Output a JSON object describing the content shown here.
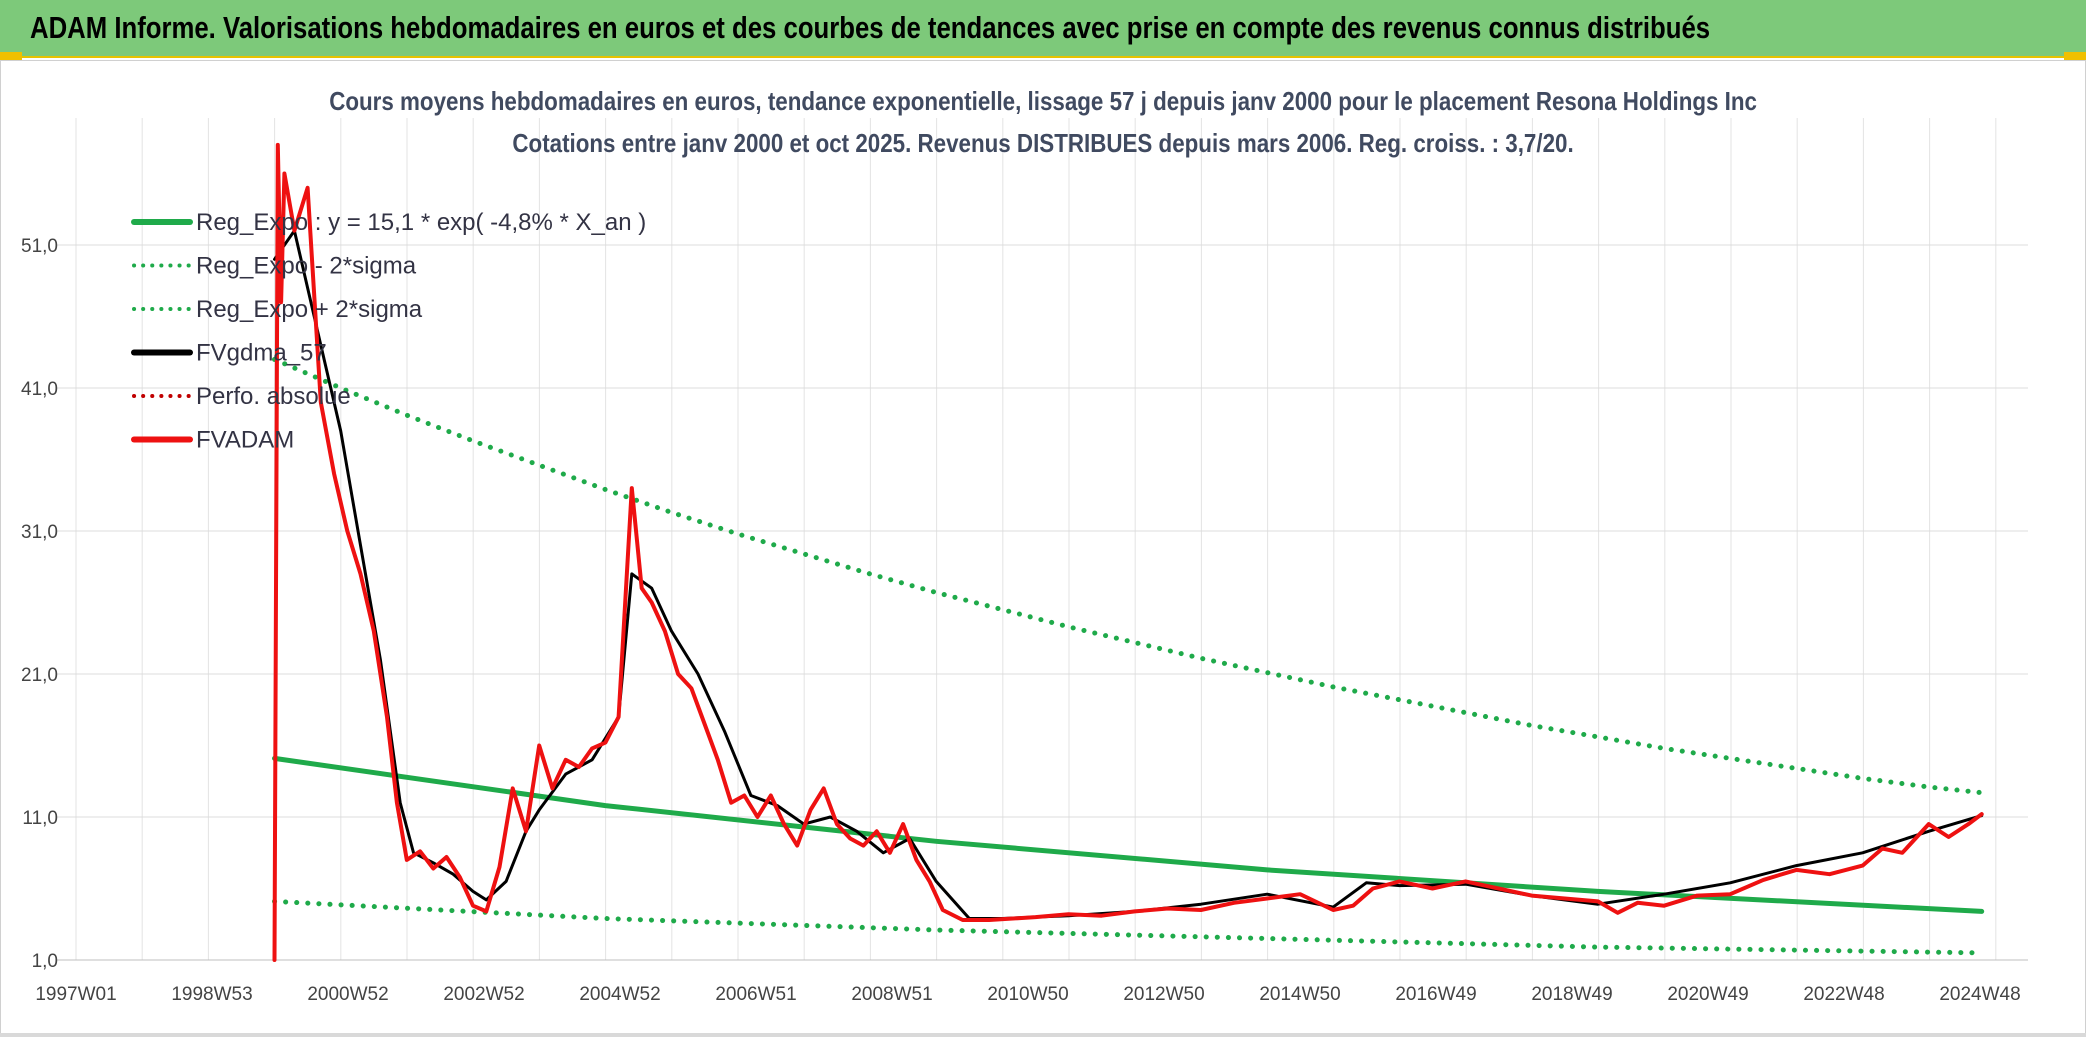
{
  "banner": {
    "title": "ADAM Informe. Valorisations hebdomadaires en euros et des courbes de tendances avec prise en compte des revenus connus distribués"
  },
  "chart_data": {
    "type": "line",
    "title": "Cours moyens hebdomadaires en euros, tendance exponentielle, lissage 57 j depuis janv 2000 pour le placement Resona Holdings Inc",
    "subtitle": "Cotations entre janv 2000 et oct 2025. Revenus DISTRIBUES depuis mars 2006. Reg. croiss. : 3,7/20.",
    "xlabel": "",
    "ylabel": "",
    "x_tick_labels": [
      "1997W01",
      "1998W53",
      "2000W52",
      "2002W52",
      "2004W52",
      "2006W51",
      "2008W51",
      "2010W50",
      "2012W50",
      "2014W50",
      "2016W49",
      "2018W49",
      "2020W49",
      "2022W48",
      "2024W48"
    ],
    "x_range_years": [
      1997.0,
      2026.5
    ],
    "y_tick_labels": [
      "1,0",
      "11,0",
      "21,0",
      "31,0",
      "41,0",
      "51,0"
    ],
    "y_ticks": [
      1,
      11,
      21,
      31,
      41,
      51
    ],
    "ylim": [
      1,
      60
    ],
    "grid": true,
    "legend_position": "top-left",
    "series": [
      {
        "name": "Reg_Expo : y = 15,1 * exp( -4,8% *  X_an )",
        "style": "solid",
        "color": "#1faa4a",
        "width": 5,
        "x": [
          2000.0,
          2005.0,
          2010.0,
          2015.0,
          2020.0,
          2025.8
        ],
        "values": [
          15.1,
          11.8,
          9.3,
          7.3,
          5.8,
          4.4
        ]
      },
      {
        "name": "Reg_Expo - 2*sigma",
        "style": "dotted",
        "color": "#1faa4a",
        "width": 4,
        "x": [
          2000.0,
          2005.0,
          2010.0,
          2015.0,
          2020.0,
          2025.8
        ],
        "values": [
          5.1,
          3.9,
          3.1,
          2.5,
          1.9,
          1.5
        ]
      },
      {
        "name": "Reg_Expo + 2*sigma",
        "style": "dotted",
        "color": "#1faa4a",
        "width": 4,
        "x": [
          2000.0,
          2001.0,
          2002.0,
          2003.0,
          2004.0,
          2005.0,
          2006.0,
          2007.0,
          2008.0,
          2009.0,
          2010.0,
          2011.0,
          2012.0,
          2013.0,
          2014.0,
          2015.0,
          2016.0,
          2017.0,
          2018.0,
          2019.0,
          2020.0,
          2021.0,
          2022.0,
          2023.0,
          2024.0,
          2025.0,
          2025.8
        ],
        "values": [
          43.0,
          41.0,
          39.1,
          37.3,
          35.6,
          33.9,
          32.3,
          30.8,
          29.4,
          28.0,
          26.7,
          25.5,
          24.3,
          23.2,
          22.1,
          21.1,
          20.1,
          19.2,
          18.3,
          17.4,
          16.6,
          15.8,
          15.1,
          14.4,
          13.7,
          13.1,
          12.7
        ]
      },
      {
        "name": "FVgdma_57",
        "style": "solid",
        "color": "#000000",
        "width": 3,
        "x": [
          2000.0,
          2000.3,
          2000.7,
          2001.0,
          2001.3,
          2001.6,
          2001.9,
          2002.1,
          2002.4,
          2002.7,
          2003.0,
          2003.2,
          2003.5,
          2003.8,
          2004.0,
          2004.4,
          2004.8,
          2005.2,
          2005.4,
          2005.7,
          2006.0,
          2006.4,
          2006.8,
          2007.2,
          2007.6,
          2008.0,
          2008.4,
          2008.8,
          2009.2,
          2009.6,
          2010.0,
          2010.5,
          2011.0,
          2012.0,
          2013.0,
          2014.0,
          2015.0,
          2016.0,
          2016.5,
          2017.0,
          2018.0,
          2019.0,
          2020.0,
          2021.0,
          2022.0,
          2023.0,
          2024.0,
          2025.0,
          2025.8
        ],
        "values": [
          50.0,
          52.0,
          44.0,
          38.0,
          30.0,
          22.0,
          12.0,
          8.5,
          7.8,
          7.0,
          5.8,
          5.2,
          6.5,
          10.0,
          11.5,
          14.0,
          15.0,
          18.0,
          28.0,
          27.0,
          24.0,
          21.0,
          17.0,
          12.5,
          11.8,
          10.5,
          11.0,
          10.0,
          8.5,
          9.5,
          6.5,
          3.9,
          3.9,
          4.1,
          4.4,
          4.9,
          5.6,
          4.7,
          6.4,
          6.2,
          6.3,
          5.5,
          4.9,
          5.6,
          6.4,
          7.6,
          8.5,
          10.0,
          11.1
        ]
      },
      {
        "name": "Perfo. absolue",
        "style": "dotted",
        "color": "#c00000",
        "width": 3,
        "x": [],
        "values": []
      },
      {
        "name": "FVADAM",
        "style": "solid",
        "color": "#ee1111",
        "width": 4,
        "x": [
          2000.0,
          2000.05,
          2000.1,
          2000.15,
          2000.3,
          2000.5,
          2000.7,
          2000.9,
          2001.1,
          2001.3,
          2001.5,
          2001.7,
          2001.85,
          2002.0,
          2002.2,
          2002.4,
          2002.6,
          2002.8,
          2003.0,
          2003.2,
          2003.4,
          2003.6,
          2003.8,
          2004.0,
          2004.2,
          2004.4,
          2004.6,
          2004.8,
          2005.0,
          2005.2,
          2005.4,
          2005.55,
          2005.7,
          2005.9,
          2006.1,
          2006.3,
          2006.5,
          2006.7,
          2006.9,
          2007.1,
          2007.3,
          2007.5,
          2007.7,
          2007.9,
          2008.1,
          2008.3,
          2008.5,
          2008.7,
          2008.9,
          2009.1,
          2009.3,
          2009.5,
          2009.7,
          2009.9,
          2010.1,
          2010.4,
          2010.8,
          2011.5,
          2012.0,
          2012.5,
          2013.0,
          2013.5,
          2014.0,
          2014.5,
          2015.0,
          2015.5,
          2016.0,
          2016.3,
          2016.6,
          2017.0,
          2017.5,
          2018.0,
          2018.5,
          2019.0,
          2019.5,
          2020.0,
          2020.3,
          2020.6,
          2021.0,
          2021.5,
          2022.0,
          2022.5,
          2023.0,
          2023.5,
          2024.0,
          2024.3,
          2024.6,
          2025.0,
          2025.3,
          2025.6,
          2025.8
        ],
        "values": [
          1.0,
          58.0,
          47.0,
          56.0,
          52.0,
          55.0,
          40.0,
          35.0,
          31.0,
          28.0,
          24.0,
          18.0,
          12.0,
          8.0,
          8.6,
          7.4,
          8.2,
          6.8,
          4.8,
          4.4,
          7.5,
          13.0,
          10.0,
          16.0,
          13.0,
          15.0,
          14.5,
          15.8,
          16.2,
          18.0,
          34.0,
          27.0,
          26.0,
          24.0,
          21.0,
          20.0,
          17.5,
          15.0,
          12.0,
          12.5,
          11.0,
          12.5,
          10.5,
          9.0,
          11.5,
          13.0,
          10.5,
          9.5,
          9.0,
          10.0,
          8.5,
          10.5,
          8.0,
          6.5,
          4.5,
          3.8,
          3.8,
          4.0,
          4.2,
          4.1,
          4.4,
          4.6,
          4.5,
          5.0,
          5.3,
          5.6,
          4.5,
          4.8,
          6.0,
          6.5,
          6.0,
          6.5,
          6.0,
          5.5,
          5.3,
          5.1,
          4.3,
          5.0,
          4.8,
          5.5,
          5.6,
          6.6,
          7.3,
          7.0,
          7.6,
          8.8,
          8.5,
          10.5,
          9.6,
          10.5,
          11.2
        ]
      }
    ]
  }
}
